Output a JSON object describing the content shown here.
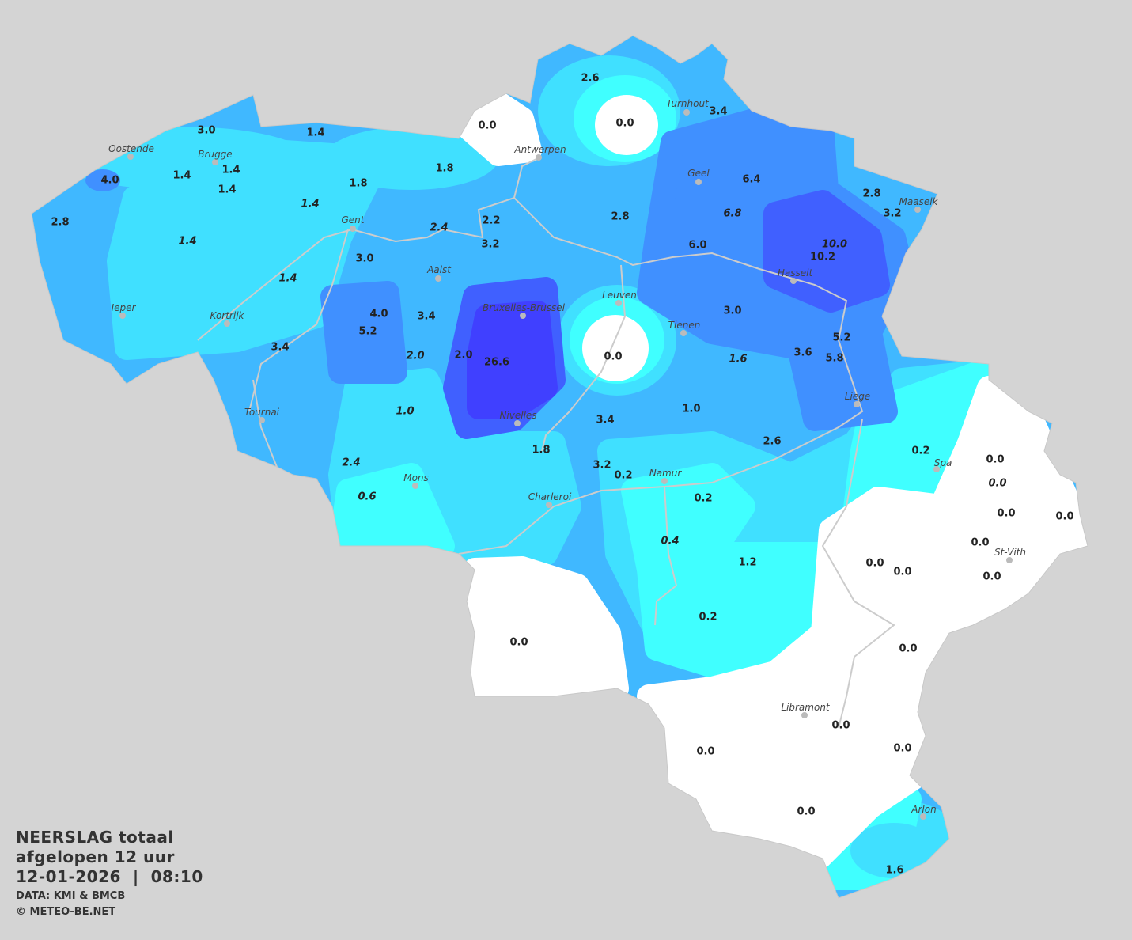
{
  "legend": {
    "title": "NEERSLAG totaal",
    "period": "afgelopen 12 uur",
    "datetime": "12-01-2026  |  08:10",
    "source": "DATA: KMI & BMCB",
    "copyright": "© METEO-BE.NET"
  },
  "colors": {
    "background": "#d4d4d4",
    "none": "#ffffff",
    "very_light": "#40ffff",
    "light": "#40e0ff",
    "medium": "#40b8ff",
    "heavy": "#4090ff",
    "very_heavy": "#4060ff",
    "extreme": "#4040ff",
    "rivers": "#cccccc",
    "city_dot": "#bbbbbb"
  },
  "cities": [
    "Oostende",
    "Brugge",
    "Gent",
    "Antwerpen",
    "Turnhout",
    "Geel",
    "Maaseik",
    "Aalst",
    "Hasselt",
    "Leuven",
    "Bruxelles-Brussel",
    "Tienen",
    "Ieper",
    "Kortrijk",
    "Liege",
    "Tournai",
    "Nivelles",
    "Spa",
    "Mons",
    "Namur",
    "Charleroi",
    "St-Vith",
    "Libramont",
    "Arlon"
  ],
  "station_values": [
    {
      "v": "3.0"
    },
    {
      "v": "1.4"
    },
    {
      "v": "4.0"
    },
    {
      "v": "1.4"
    },
    {
      "v": "1.4"
    },
    {
      "v": "1.4"
    },
    {
      "v": "2.8"
    },
    {
      "v": "1.4",
      "estimated": true
    },
    {
      "v": "1.8"
    },
    {
      "v": "1.4",
      "estimated": true
    },
    {
      "v": "1.8"
    },
    {
      "v": "0.0"
    },
    {
      "v": "2.6"
    },
    {
      "v": "0.0"
    },
    {
      "v": "3.4"
    },
    {
      "v": "6.4"
    },
    {
      "v": "6.8",
      "estimated": true
    },
    {
      "v": "2.8"
    },
    {
      "v": "3.2"
    },
    {
      "v": "2.2"
    },
    {
      "v": "2.8"
    },
    {
      "v": "2.4",
      "estimated": true
    },
    {
      "v": "3.2"
    },
    {
      "v": "6.0"
    },
    {
      "v": "10.0",
      "estimated": true
    },
    {
      "v": "10.2"
    },
    {
      "v": "3.0"
    },
    {
      "v": "1.4",
      "estimated": true
    },
    {
      "v": "4.0"
    },
    {
      "v": "3.4"
    },
    {
      "v": "5.2"
    },
    {
      "v": "3.0"
    },
    {
      "v": "3.4"
    },
    {
      "v": "2.0",
      "estimated": true
    },
    {
      "v": "2.0"
    },
    {
      "v": "26.6"
    },
    {
      "v": "0.0"
    },
    {
      "v": "1.6",
      "estimated": true
    },
    {
      "v": "3.6"
    },
    {
      "v": "5.2"
    },
    {
      "v": "5.8"
    },
    {
      "v": "1.0",
      "estimated": true
    },
    {
      "v": "3.4"
    },
    {
      "v": "1.0"
    },
    {
      "v": "1.8"
    },
    {
      "v": "2.6"
    },
    {
      "v": "0.2"
    },
    {
      "v": "0.0"
    },
    {
      "v": "0.0",
      "estimated": true
    },
    {
      "v": "2.4",
      "estimated": true
    },
    {
      "v": "3.2"
    },
    {
      "v": "0.2"
    },
    {
      "v": "0.6",
      "estimated": true
    },
    {
      "v": "0.2"
    },
    {
      "v": "0.0"
    },
    {
      "v": "0.0"
    },
    {
      "v": "0.4",
      "estimated": true
    },
    {
      "v": "0.0"
    },
    {
      "v": "1.2"
    },
    {
      "v": "0.0"
    },
    {
      "v": "0.0"
    },
    {
      "v": "0.0"
    },
    {
      "v": "0.2"
    },
    {
      "v": "0.0"
    },
    {
      "v": "0.0"
    },
    {
      "v": "0.0"
    },
    {
      "v": "0.0"
    },
    {
      "v": "0.0"
    },
    {
      "v": "0.0"
    },
    {
      "v": "1.6"
    }
  ]
}
